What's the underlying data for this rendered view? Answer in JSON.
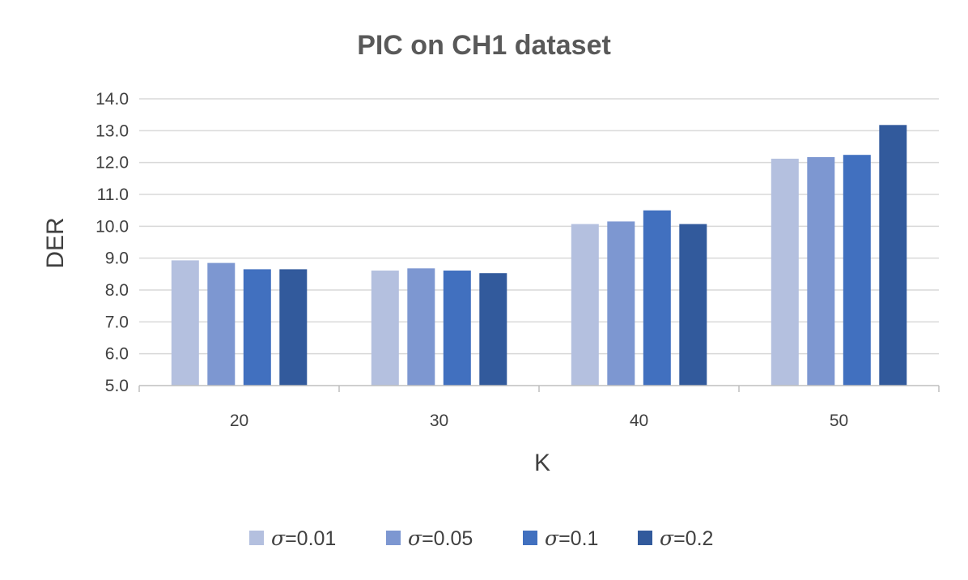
{
  "chart_data": {
    "type": "bar",
    "title": "PIC on CH1 dataset",
    "xlabel": "K",
    "ylabel": "DER",
    "categories": [
      "20",
      "30",
      "40",
      "50"
    ],
    "ylim": [
      5.0,
      14.0
    ],
    "ytick_step": 1.0,
    "ytick_labels": [
      "5.0",
      "6.0",
      "7.0",
      "8.0",
      "9.0",
      "10.0",
      "11.0",
      "12.0",
      "13.0",
      "14.0"
    ],
    "grid": true,
    "legend_position": "bottom",
    "series": [
      {
        "name": "σ=0.01",
        "color": "#b4c0df",
        "values": [
          8.93,
          8.61,
          10.07,
          12.12
        ]
      },
      {
        "name": "σ=0.05",
        "color": "#7d97d1",
        "values": [
          8.85,
          8.68,
          10.15,
          12.17
        ]
      },
      {
        "name": "σ=0.1",
        "color": "#4170bf",
        "values": [
          8.65,
          8.61,
          10.5,
          12.24
        ]
      },
      {
        "name": "σ=0.2",
        "color": "#325a9c",
        "values": [
          8.65,
          8.53,
          10.07,
          13.18
        ]
      }
    ]
  }
}
